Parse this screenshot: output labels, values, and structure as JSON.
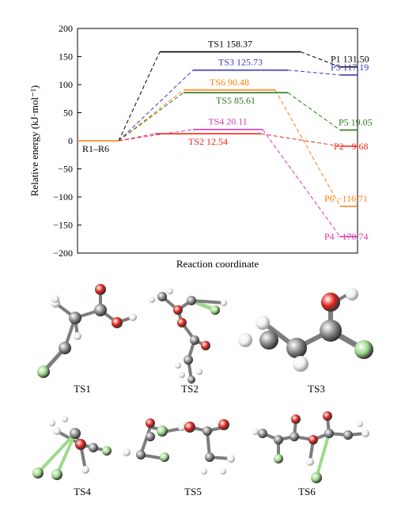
{
  "chart_data": {
    "type": "line",
    "title": "",
    "xlabel": "Reaction coordinate",
    "ylabel": "Relative energy (kJ·mol⁻¹)",
    "ylim": [
      -200,
      200
    ],
    "yticks": [
      -200,
      -150,
      -100,
      -50,
      0,
      50,
      100,
      150,
      200
    ],
    "grid": false,
    "start": {
      "label": "R1–R6",
      "value": 0
    },
    "pathways": [
      {
        "color": "#000000",
        "ts_label": "TS1 158.37",
        "ts_value": 158.37,
        "p_label": "P1 131.50",
        "p_value": 131.5
      },
      {
        "color": "#3b3bbd",
        "ts_label": "TS3 125.73",
        "ts_value": 125.73,
        "p_label": "P3 117.19",
        "p_value": 117.19
      },
      {
        "color": "#ff7f0e",
        "ts_label": "TS6 90.48",
        "ts_value": 90.48,
        "p_label": "P6 −116.71",
        "p_value": -116.71
      },
      {
        "color": "#2a7a1e",
        "ts_label": "TS5 85.61",
        "ts_value": 85.61,
        "p_label": "P5 19.05",
        "p_value": 19.05
      },
      {
        "color": "#d63ab0",
        "ts_label": "TS4 20.11",
        "ts_value": 20.11,
        "p_label": "P4 −170.74",
        "p_value": -170.74
      },
      {
        "color": "#ee2a1a",
        "ts_label": "TS2 12.54",
        "ts_value": 12.54,
        "p_label": "P2 −9.68",
        "p_value": -9.68
      }
    ]
  },
  "molecules": {
    "labels": [
      "TS1",
      "TS2",
      "TS3",
      "TS4",
      "TS5",
      "TS6"
    ],
    "colors": {
      "carbon": "#8a8a8a",
      "oxygen": "#e0231b",
      "hydrogen": "#f2f2f2",
      "fluorine": "#9ed98a"
    }
  }
}
